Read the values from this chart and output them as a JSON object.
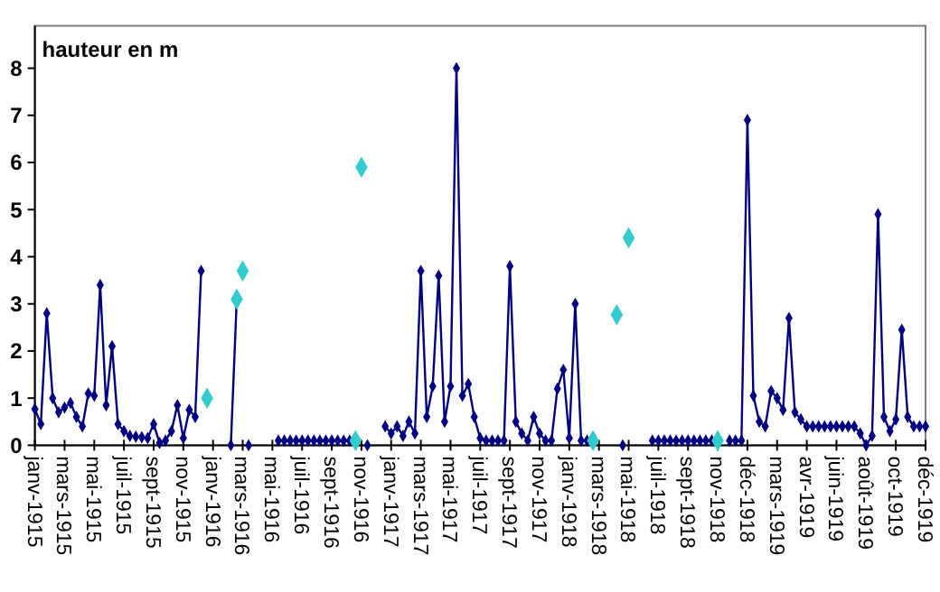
{
  "chart_data": {
    "type": "line",
    "ylabel": "hauteur en m",
    "marker": "diamond",
    "grid": false,
    "categories": [
      "janv-1915",
      null,
      null,
      null,
      null,
      "mars-1915",
      null,
      null,
      null,
      null,
      "mai-1915",
      null,
      null,
      null,
      null,
      "juil-1915",
      null,
      null,
      null,
      null,
      "sept-1915",
      null,
      null,
      null,
      null,
      "nov-1915",
      null,
      null,
      null,
      null,
      "janv-1916",
      null,
      null,
      null,
      null,
      "mars-1916",
      null,
      null,
      null,
      null,
      "mai-1916",
      null,
      null,
      null,
      null,
      "juil-1916",
      null,
      null,
      null,
      null,
      "sept-1916",
      null,
      null,
      null,
      null,
      "nov-1916",
      null,
      null,
      null,
      null,
      "janv-1917",
      null,
      null,
      null,
      null,
      "mars-1917",
      null,
      null,
      null,
      null,
      "mai-1917",
      null,
      null,
      null,
      null,
      "juil-1917",
      null,
      null,
      null,
      null,
      "sept-1917",
      null,
      null,
      null,
      null,
      "nov-1917",
      null,
      null,
      null,
      null,
      "janv-1918",
      null,
      null,
      null,
      null,
      "mars-1918",
      null,
      null,
      null,
      null,
      "mai-1918",
      null,
      null,
      null,
      null,
      "juil-1918",
      null,
      null,
      null,
      null,
      "sept-1918",
      null,
      null,
      null,
      null,
      "nov-1918",
      null,
      null,
      null,
      null,
      "déc-1918",
      null,
      null,
      null,
      null,
      "mars-1919",
      null,
      null,
      null,
      null,
      "avr-1919",
      null,
      null,
      null,
      null,
      "juin-1919",
      null,
      null,
      null,
      null,
      "août-1919",
      null,
      null,
      null,
      null,
      "oct-1919",
      null,
      null,
      null,
      null,
      "déc-1919"
    ],
    "ylim": [
      0,
      8.9
    ],
    "yticks": [
      0,
      1,
      2,
      3,
      4,
      5,
      6,
      7,
      8
    ],
    "series": [
      {
        "color": "#000080",
        "values": [
          0.77,
          0.45,
          2.8,
          1.0,
          0.7,
          0.8,
          0.9,
          0.6,
          0.4,
          1.1,
          1.05,
          3.4,
          0.85,
          2.1,
          0.45,
          0.3,
          0.2,
          0.18,
          0.17,
          0.15,
          0.45,
          0.05,
          0.1,
          0.3,
          0.85,
          0.15,
          0.75,
          0.6,
          3.7,
          null,
          null,
          null,
          null,
          0,
          3.1,
          null,
          0,
          null,
          null,
          null,
          null,
          0.1,
          0.1,
          0.1,
          0.1,
          0.1,
          0.1,
          0.1,
          0.1,
          0.1,
          0.1,
          0.1,
          0.1,
          0.1,
          0.1,
          null,
          0,
          null,
          null,
          0.4,
          0.25,
          0.4,
          0.2,
          0.5,
          0.25,
          3.7,
          0.6,
          1.25,
          3.6,
          0.5,
          1.25,
          8.0,
          1.05,
          1.3,
          0.6,
          0.15,
          0.1,
          0.1,
          0.1,
          0.1,
          3.8,
          0.5,
          0.25,
          0.1,
          0.6,
          0.25,
          0.1,
          0.1,
          1.2,
          1.6,
          0.15,
          3.0,
          0.1,
          0.1,
          0.1,
          null,
          null,
          null,
          null,
          0,
          null,
          null,
          null,
          null,
          0.1,
          0.1,
          0.1,
          0.1,
          0.1,
          0.1,
          0.1,
          0.1,
          0.1,
          0.1,
          0.1,
          null,
          null,
          0.1,
          0.1,
          0.1,
          6.9,
          1.05,
          0.5,
          0.4,
          1.15,
          1.0,
          0.75,
          2.7,
          0.7,
          0.55,
          0.4,
          0.4,
          0.4,
          0.4,
          0.4,
          0.4,
          0.4,
          0.4,
          0.4,
          0.25,
          0,
          0.2,
          4.9,
          0.6,
          0.3,
          0.55,
          2.45,
          0.6,
          0.4,
          0.4,
          0.4
        ]
      },
      {
        "type": "scatter",
        "color": "#33cccc",
        "values": [
          null,
          null,
          null,
          null,
          null,
          null,
          null,
          null,
          null,
          null,
          null,
          null,
          null,
          null,
          null,
          null,
          null,
          null,
          null,
          null,
          null,
          null,
          null,
          null,
          null,
          null,
          null,
          null,
          null,
          1.0,
          null,
          null,
          null,
          null,
          3.1,
          3.7,
          null,
          null,
          null,
          null,
          null,
          null,
          null,
          null,
          null,
          null,
          null,
          null,
          null,
          null,
          null,
          null,
          null,
          null,
          0.1,
          5.9,
          null,
          null,
          null,
          null,
          null,
          null,
          null,
          null,
          null,
          null,
          null,
          null,
          null,
          null,
          null,
          null,
          null,
          null,
          null,
          null,
          null,
          null,
          null,
          null,
          null,
          null,
          null,
          null,
          null,
          null,
          null,
          null,
          null,
          null,
          null,
          null,
          null,
          null,
          0.1,
          null,
          null,
          null,
          2.77,
          null,
          4.4,
          null,
          null,
          null,
          null,
          null,
          null,
          null,
          null,
          null,
          null,
          null,
          null,
          null,
          null,
          0.1,
          null,
          null,
          null,
          null,
          null,
          null,
          null,
          null,
          null,
          null,
          null,
          null,
          null,
          null,
          null,
          null,
          null,
          null,
          null,
          null,
          null,
          null,
          null,
          null,
          null,
          null,
          null,
          null,
          null,
          null,
          null,
          null,
          null,
          null,
          null
        ]
      }
    ]
  }
}
